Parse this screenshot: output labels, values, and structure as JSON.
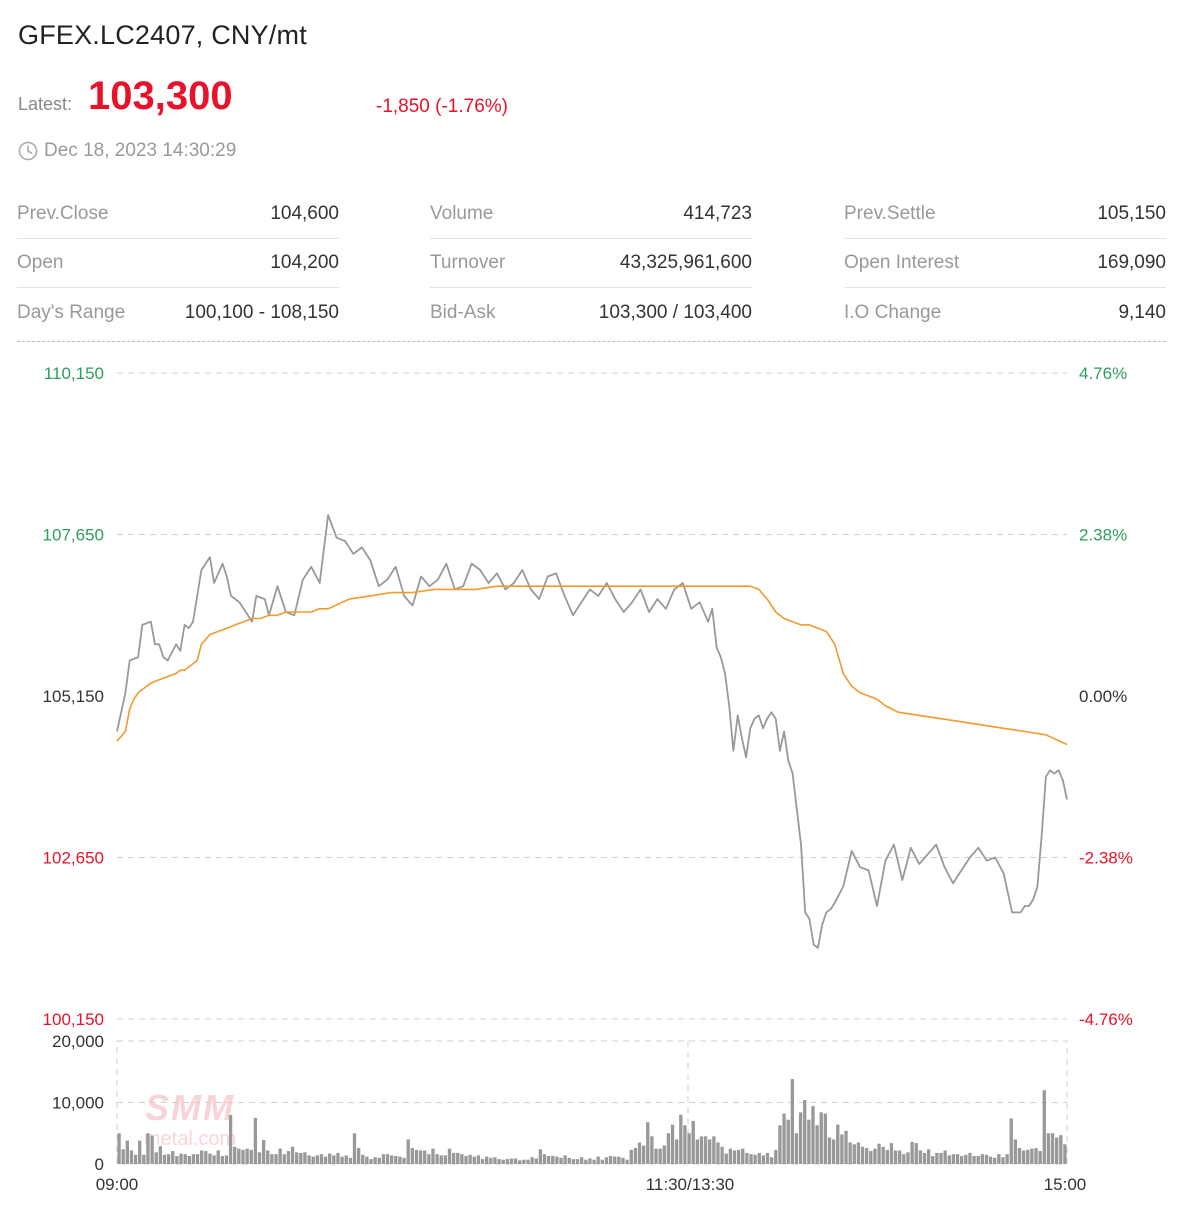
{
  "header": {
    "title": "GFEX.LC2407, CNY/mt",
    "latest_label": "Latest:",
    "latest_value": "103,300",
    "change": "-1,850 (-1.76%)",
    "timestamp": "Dec 18, 2023 14:30:29"
  },
  "colors": {
    "up": "#2e9e5b",
    "down": "#e8132b",
    "price_line": "#999999",
    "avg_line": "#f39a2c",
    "volume_bar": "#999999"
  },
  "stats": [
    [
      {
        "label": "Prev.Close",
        "value": "104,600"
      },
      {
        "label": "Open",
        "value": "104,200"
      },
      {
        "label": "Day's Range",
        "value": "100,100 - 108,150"
      }
    ],
    [
      {
        "label": "Volume",
        "value": "414,723"
      },
      {
        "label": "Turnover",
        "value": "43,325,961,600"
      },
      {
        "label": "Bid-Ask",
        "value": "103,300 / 103,400"
      }
    ],
    [
      {
        "label": "Prev.Settle",
        "value": "105,150"
      },
      {
        "label": "Open Interest",
        "value": "169,090"
      },
      {
        "label": "I.O Change",
        "value": "9,140"
      }
    ]
  ],
  "chart_data": [
    {
      "type": "line",
      "y_ticks_left": [
        "110,150",
        "107,650",
        "105,150",
        "102,650",
        "100,150"
      ],
      "y_ticks_right": [
        "4.76%",
        "2.38%",
        "0.00%",
        "-2.38%",
        "-4.76%"
      ],
      "ylim": [
        100150,
        110150
      ],
      "reference": 105150,
      "x_ticks": [
        "09:00",
        "11:30/13:30",
        "15:00"
      ],
      "xlim": [
        0,
        225
      ],
      "series": [
        {
          "key": "price",
          "x": [
            0,
            2,
            3,
            5,
            6,
            8,
            9,
            10,
            11,
            12,
            14,
            15,
            16,
            17,
            18,
            20,
            22,
            23,
            25,
            26,
            27,
            29,
            30,
            32,
            33,
            35,
            36,
            38,
            40,
            42,
            44,
            46,
            48,
            50,
            52,
            54,
            56,
            58,
            60,
            62,
            64,
            66,
            68,
            70,
            72,
            74,
            76,
            78,
            80,
            82,
            84,
            86,
            88,
            90,
            92,
            94,
            96,
            98,
            100,
            102,
            104,
            106,
            108,
            110,
            112,
            114,
            116,
            118,
            120,
            122,
            124,
            126,
            128,
            130,
            132,
            134,
            136,
            138,
            140,
            141,
            142,
            143,
            144,
            145,
            146,
            147,
            148,
            149,
            150,
            151,
            152,
            153,
            154,
            155,
            156,
            157,
            158,
            159,
            160,
            161,
            162,
            163,
            164,
            165,
            166,
            167,
            168,
            169,
            170,
            172,
            174,
            176,
            178,
            180,
            182,
            184,
            186,
            188,
            190,
            192,
            194,
            196,
            198,
            200,
            202,
            204,
            206,
            208,
            210,
            212,
            214,
            215,
            216,
            217,
            218,
            219,
            220,
            221,
            222,
            223,
            224,
            225
          ],
          "y": [
            104600,
            105200,
            105700,
            105750,
            106250,
            106300,
            105950,
            105950,
            105750,
            105700,
            105950,
            105850,
            106250,
            106200,
            106300,
            107100,
            107300,
            106900,
            107200,
            107000,
            106700,
            106600,
            106500,
            106300,
            106700,
            106650,
            106400,
            106850,
            106450,
            106400,
            106950,
            107150,
            106900,
            107950,
            107600,
            107550,
            107350,
            107450,
            107250,
            106850,
            106950,
            107150,
            106700,
            106550,
            107000,
            106850,
            106950,
            107200,
            106800,
            106850,
            107200,
            107100,
            106900,
            107050,
            106800,
            106900,
            107100,
            106800,
            106650,
            107000,
            107050,
            106700,
            106400,
            106600,
            106800,
            106700,
            106900,
            106650,
            106450,
            106600,
            106800,
            106450,
            106650,
            106500,
            106800,
            106900,
            106500,
            106600,
            106300,
            106500,
            105900,
            105750,
            105500,
            105000,
            104300,
            104850,
            104500,
            104200,
            104650,
            104800,
            104850,
            104650,
            104800,
            104900,
            104800,
            104300,
            104600,
            104150,
            103950,
            103400,
            102850,
            101800,
            101700,
            101300,
            101250,
            101600,
            101800,
            101850,
            101950,
            102200,
            102750,
            102500,
            102450,
            101900,
            102600,
            102850,
            102300,
            102800,
            102550,
            102700,
            102850,
            102500,
            102250,
            102450,
            102650,
            102800,
            102600,
            102650,
            102400,
            101800,
            101800,
            101900,
            101900,
            102000,
            102200,
            103000,
            103900,
            104000,
            103950,
            104000,
            103850,
            103550
          ],
          "x_end_note": "series ends at 14:30"
        },
        {
          "key": "average",
          "x": [
            0,
            2,
            3,
            4,
            5,
            6,
            8,
            10,
            12,
            14,
            15,
            16,
            17,
            18,
            19,
            20,
            22,
            24,
            26,
            28,
            30,
            32,
            34,
            36,
            38,
            40,
            42,
            44,
            46,
            48,
            50,
            55,
            60,
            65,
            70,
            75,
            80,
            85,
            90,
            95,
            100,
            105,
            110,
            115,
            120,
            125,
            130,
            135,
            138,
            140,
            141,
            142,
            143,
            144,
            146,
            148,
            150,
            152,
            154,
            156,
            158,
            160,
            162,
            164,
            166,
            168,
            170,
            172,
            174,
            176,
            178,
            180,
            182,
            185,
            190,
            195,
            200,
            205,
            210,
            215,
            220,
            225
          ],
          "y": [
            104450,
            104600,
            104950,
            105100,
            105200,
            105250,
            105350,
            105400,
            105450,
            105500,
            105550,
            105550,
            105600,
            105650,
            105700,
            105950,
            106100,
            106150,
            106200,
            106250,
            106300,
            106350,
            106350,
            106400,
            106400,
            106450,
            106450,
            106450,
            106450,
            106500,
            106500,
            106650,
            106700,
            106750,
            106750,
            106800,
            106800,
            106800,
            106850,
            106850,
            106850,
            106850,
            106850,
            106850,
            106850,
            106850,
            106850,
            106850,
            106850,
            106850,
            106850,
            106850,
            106850,
            106850,
            106850,
            106850,
            106850,
            106800,
            106650,
            106450,
            106350,
            106300,
            106250,
            106250,
            106200,
            106150,
            105950,
            105500,
            105300,
            105200,
            105150,
            105100,
            105000,
            104900,
            104850,
            104800,
            104750,
            104700,
            104650,
            104600,
            104550,
            104400
          ]
        }
      ]
    },
    {
      "type": "bar",
      "y_ticks": [
        "20,000",
        "10,000",
        "0"
      ],
      "ylim": [
        0,
        20000
      ],
      "x_ticks": [
        "09:00",
        "11:30/13:30",
        "15:00"
      ],
      "xlim": [
        0,
        225
      ],
      "values": [
        5000,
        2400,
        3800,
        2200,
        1500,
        3800,
        1500,
        5000,
        4600,
        1900,
        2900,
        1500,
        1600,
        2100,
        1300,
        1700,
        1600,
        1300,
        1600,
        1600,
        2200,
        2100,
        1700,
        1400,
        2200,
        1300,
        1400,
        8000,
        2800,
        2500,
        2300,
        2500,
        2300,
        7500,
        1900,
        3900,
        2200,
        1600,
        1600,
        2500,
        1600,
        2100,
        2800,
        1900,
        1800,
        1900,
        1400,
        1200,
        1400,
        1600,
        1200,
        1700,
        1400,
        1800,
        1200,
        1400,
        1000,
        5000,
        2600,
        1500,
        1200,
        800,
        1100,
        1000,
        1600,
        1600,
        1400,
        1300,
        1200,
        1000,
        4000,
        2600,
        2300,
        2200,
        2200,
        1600,
        2500,
        1600,
        1400,
        1400,
        2500,
        1800,
        1800,
        1600,
        1300,
        1500,
        1200,
        1400,
        800,
        1200,
        1000,
        1100,
        800,
        700,
        800,
        900,
        900,
        600,
        700,
        700,
        1100,
        900,
        2400,
        1600,
        1300,
        1300,
        1200,
        1000,
        1400,
        1000,
        800,
        800,
        1100,
        700,
        900,
        700,
        1200,
        700,
        1100,
        1300,
        1200,
        1200,
        1000,
        700,
        2300,
        2600,
        3500,
        3000,
        6800,
        4500,
        2500,
        2500,
        3000,
        5000,
        6400,
        4000,
        8000,
        6300,
        5000,
        7000,
        4000,
        4500,
        4500,
        4000,
        4500,
        3500,
        2800,
        1700,
        2500,
        2200,
        2300,
        2500,
        1800,
        1600,
        1500,
        1800,
        1400,
        1800,
        1100,
        2300,
        6300,
        8200,
        7200,
        13800,
        5000,
        8400,
        10400,
        7200,
        9400,
        6300,
        8400,
        8200,
        4300,
        4000,
        6400,
        4800,
        5400,
        3500,
        3200,
        3500,
        2800,
        2600,
        2100,
        2500,
        3300,
        2800,
        2300,
        3400,
        2200,
        2200,
        1600,
        1900,
        3600,
        3400,
        2200,
        1800,
        2400,
        1300,
        1800,
        1800,
        2200,
        1400,
        1600,
        1600,
        1300,
        1500,
        1800,
        1300,
        1300,
        1600,
        1500,
        1200,
        1000,
        1600,
        1100,
        1600,
        7400,
        4000,
        2600,
        2200,
        2300,
        2500,
        2600,
        2100,
        12000,
        5000,
        5000,
        4300,
        4700,
        3200
      ],
      "values_note": "one bar per minute-bucket from 09:00 to ~14:30"
    }
  ],
  "watermark": {
    "brand": "SMM",
    "site": "metal.com"
  }
}
